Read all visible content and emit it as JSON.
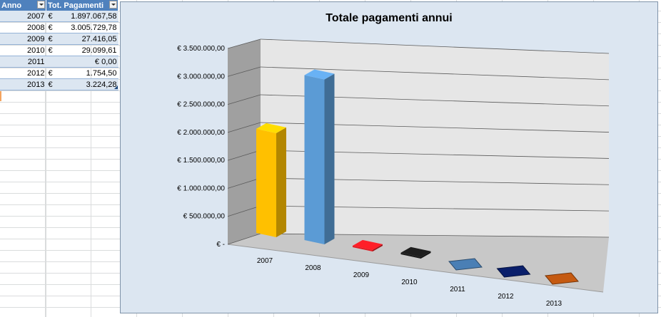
{
  "table": {
    "headers": [
      "Anno",
      "Tot. Pagamenti"
    ],
    "rows": [
      {
        "year": "2007",
        "currency": "€",
        "amount": "1.897.067,58"
      },
      {
        "year": "2008",
        "currency": "€",
        "amount": "3.005.729,78"
      },
      {
        "year": "2009",
        "currency": "€",
        "amount": "27.416,05"
      },
      {
        "year": "2010",
        "currency": "€",
        "amount": "29.099,61"
      },
      {
        "year": "2011",
        "currency": "",
        "amount": "€ 0,00"
      },
      {
        "year": "2012",
        "currency": "€",
        "amount": "1.754,50"
      },
      {
        "year": "2013",
        "currency": "€",
        "amount": "3.224,28"
      }
    ]
  },
  "chart_data": {
    "type": "bar",
    "title": "Totale pagamenti annui",
    "xlabel": "",
    "ylabel": "",
    "categories": [
      "2007",
      "2008",
      "2009",
      "2010",
      "2011",
      "2012",
      "2013"
    ],
    "values": [
      1897067.58,
      3005729.78,
      27416.05,
      29099.61,
      0,
      1754.5,
      3224.28
    ],
    "bar_colors": [
      "#ffc000",
      "#5b9bd5",
      "#e31b23",
      "#1a1a1a",
      "#4a7fb5",
      "#0a1f6b",
      "#c55a11"
    ],
    "ylim": [
      0,
      3500000
    ],
    "yticks": [
      0,
      500000,
      1000000,
      1500000,
      2000000,
      2500000,
      3000000,
      3500000
    ],
    "ytick_labels": [
      "€ -",
      "€ 500.000,00",
      "€ 1.000.000,00",
      "€ 1.500.000,00",
      "€ 2.000.000,00",
      "€ 2.500.000,00",
      "€ 3.000.000,00",
      "€ 3.500.000,00"
    ],
    "grid": true,
    "legend": "none",
    "style": "3d-column"
  }
}
